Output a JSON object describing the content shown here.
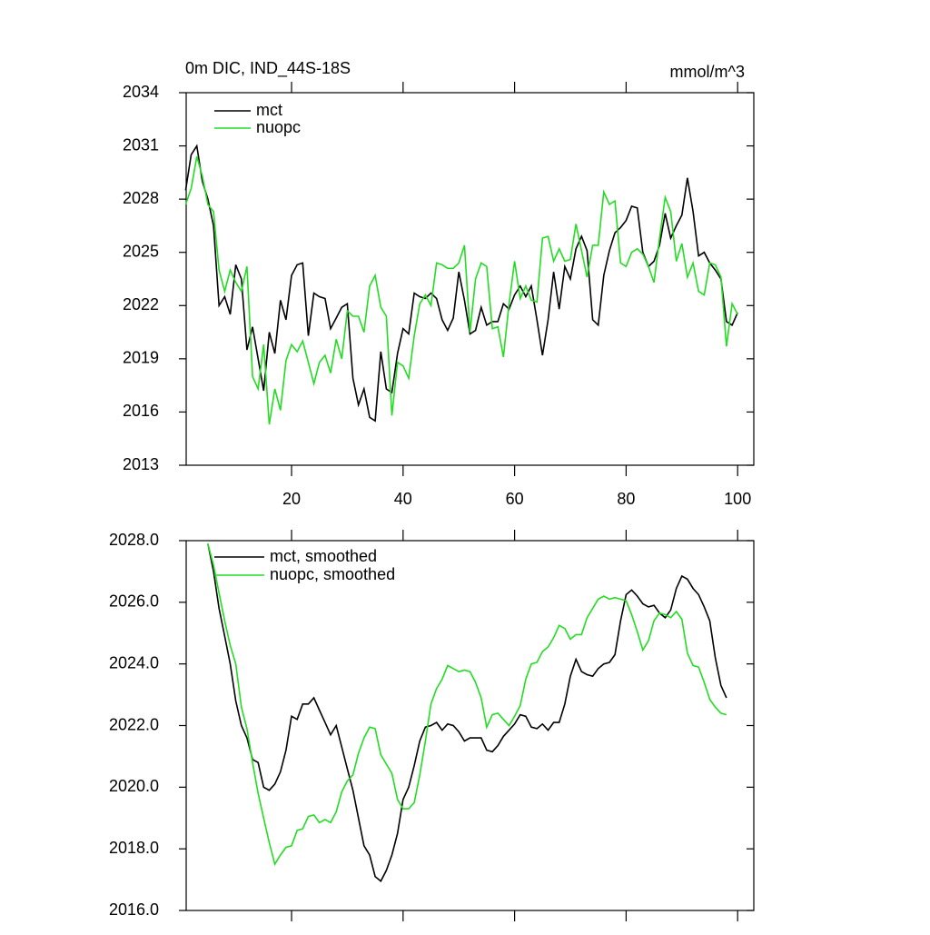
{
  "chart_data": [
    {
      "type": "line",
      "title": "0m DIC, IND_44S-18S",
      "units": "mmol/m^3",
      "xlim": [
        1.1,
        102.9
      ],
      "xticks": [
        20,
        40,
        60,
        80,
        100
      ],
      "ylim": [
        2013,
        2034
      ],
      "yticks": [
        2013,
        2016,
        2019,
        2022,
        2025,
        2028,
        2031,
        2034
      ],
      "x": [
        1,
        2,
        3,
        4,
        5,
        6,
        7,
        8,
        9,
        10,
        11,
        12,
        13,
        14,
        15,
        16,
        17,
        18,
        19,
        20,
        21,
        22,
        23,
        24,
        25,
        26,
        27,
        28,
        29,
        30,
        31,
        32,
        33,
        34,
        35,
        36,
        37,
        38,
        39,
        40,
        41,
        42,
        43,
        44,
        45,
        46,
        47,
        48,
        49,
        50,
        51,
        52,
        53,
        54,
        55,
        56,
        57,
        58,
        59,
        60,
        61,
        62,
        63,
        64,
        65,
        66,
        67,
        68,
        69,
        70,
        71,
        72,
        73,
        74,
        75,
        76,
        77,
        78,
        79,
        80,
        81,
        82,
        83,
        84,
        85,
        86,
        87,
        88,
        89,
        90,
        91,
        92,
        93,
        94,
        95,
        96,
        97,
        98,
        99,
        100
      ],
      "series": [
        {
          "name": "mct",
          "color": "#000000",
          "values": [
            2028.5,
            2030.5,
            2031,
            2029,
            2028,
            2026.5,
            2022,
            2022.5,
            2021.5,
            2024.3,
            2023.5,
            2019.5,
            2020.8,
            2019,
            2017.2,
            2020.5,
            2019.3,
            2022.3,
            2021.2,
            2023.7,
            2024.3,
            2024.4,
            2020.3,
            2022.7,
            2022.5,
            2022.4,
            2020.7,
            2021.3,
            2021.9,
            2022.1,
            2017.9,
            2016.4,
            2017.3,
            2015.7,
            2015.5,
            2019.4,
            2017.3,
            2017.1,
            2019.3,
            2020.7,
            2020.4,
            2022.7,
            2022.5,
            2022.4,
            2022.7,
            2022.4,
            2021.2,
            2020.6,
            2021.3,
            2023.9,
            2022.3,
            2020.4,
            2020.6,
            2021.9,
            2020.9,
            2021.1,
            2021.1,
            2022.1,
            2021.8,
            2022.6,
            2023.1,
            2022.5,
            2023.1,
            2021.2,
            2019.2,
            2021.2,
            2023.9,
            2021.8,
            2024.2,
            2023.5,
            2025.2,
            2025.9,
            2025.1,
            2021.2,
            2020.9,
            2023.7,
            2025.1,
            2026.1,
            2026.4,
            2026.8,
            2027.6,
            2027.5,
            2025.0,
            2024.2,
            2024.5,
            2025.4,
            2027.2,
            2025.8,
            2026.5,
            2027.1,
            2029.2,
            2027.3,
            2024.8,
            2025.0,
            2024.4,
            2024.0,
            2023.5,
            2021.1,
            2020.9,
            2021.6
          ]
        },
        {
          "name": "nuopc",
          "color": "#22dd22",
          "values": [
            2027.7,
            2028.6,
            2030.4,
            2029.3,
            2027.7,
            2027.3,
            2024.0,
            2022.8,
            2024.0,
            2023.3,
            2022.8,
            2024.2,
            2018.0,
            2017.3,
            2019.8,
            2015.3,
            2017.3,
            2016.1,
            2018.9,
            2019.8,
            2019.4,
            2020.0,
            2018.8,
            2017.6,
            2018.8,
            2019.2,
            2018.2,
            2020.1,
            2019.0,
            2021.7,
            2021.4,
            2021.4,
            2020.5,
            2023.1,
            2023.7,
            2021.9,
            2021.4,
            2015.8,
            2018.8,
            2018.6,
            2017.9,
            2020.3,
            2022.1,
            2022.6,
            2022.0,
            2024.4,
            2024.3,
            2024.1,
            2024.1,
            2024.4,
            2025.4,
            2020.5,
            2023.5,
            2024.4,
            2024.2,
            2020.7,
            2020.8,
            2019.1,
            2022.1,
            2024.5,
            2022.4,
            2023.1,
            2022.3,
            2022.2,
            2025.8,
            2025.9,
            2024.5,
            2025.2,
            2024.5,
            2024.6,
            2026.6,
            2025.1,
            2023.6,
            2025.4,
            2025.4,
            2028.4,
            2027.7,
            2027.9,
            2024.4,
            2024.2,
            2025.0,
            2025.2,
            2024.9,
            2024.2,
            2023.3,
            2025.8,
            2028.1,
            2027.3,
            2024.5,
            2025.5,
            2023.6,
            2024.4,
            2022.8,
            2022.6,
            2024.4,
            2024.3,
            2023.6,
            2019.7,
            2022.1,
            2021.5
          ]
        }
      ]
    },
    {
      "type": "line",
      "xlim": [
        1.1,
        102.9
      ],
      "ylim": [
        2016,
        2028
      ],
      "yticks": [
        {
          "value": 2016,
          "label": "2016.0"
        },
        {
          "value": 2018,
          "label": "2018.0"
        },
        {
          "value": 2020,
          "label": "2020.0"
        },
        {
          "value": 2022,
          "label": "2022.0"
        },
        {
          "value": 2024,
          "label": "2024.0"
        },
        {
          "value": 2026,
          "label": "2026.0"
        },
        {
          "value": 2028,
          "label": "2028.0"
        }
      ],
      "x": [
        5,
        6,
        7,
        8,
        9,
        10,
        11,
        12,
        13,
        14,
        15,
        16,
        17,
        18,
        19,
        20,
        21,
        22,
        23,
        24,
        25,
        26,
        27,
        28,
        29,
        30,
        31,
        32,
        33,
        34,
        35,
        36,
        37,
        38,
        39,
        40,
        41,
        42,
        43,
        44,
        45,
        46,
        47,
        48,
        49,
        50,
        51,
        52,
        53,
        54,
        55,
        56,
        57,
        58,
        59,
        60,
        61,
        62,
        63,
        64,
        65,
        66,
        67,
        68,
        69,
        70,
        71,
        72,
        73,
        74,
        75,
        76,
        77,
        78,
        79,
        80,
        81,
        82,
        83,
        84,
        85,
        86,
        87,
        88,
        89,
        90,
        91,
        92,
        93,
        94,
        95,
        96,
        97,
        98
      ],
      "series": [
        {
          "name": "mct, smoothed",
          "color": "#000000",
          "values": [
            2027.9,
            2027.0,
            2025.8,
            2024.9,
            2024.0,
            2022.8,
            2022.0,
            2021.6,
            2020.9,
            2020.8,
            2020.0,
            2019.9,
            2020.1,
            2020.5,
            2021.2,
            2022.3,
            2022.2,
            2022.7,
            2022.7,
            2022.9,
            2022.5,
            2022.1,
            2021.7,
            2022.0,
            2021.3,
            2020.6,
            2019.9,
            2019.0,
            2018.1,
            2017.8,
            2017.1,
            2016.95,
            2017.3,
            2017.8,
            2018.5,
            2019.6,
            2020.0,
            2020.7,
            2021.5,
            2021.95,
            2022.0,
            2022.1,
            2021.85,
            2022.05,
            2022.0,
            2021.8,
            2021.5,
            2021.6,
            2021.6,
            2021.6,
            2021.2,
            2021.15,
            2021.35,
            2021.65,
            2021.85,
            2022.05,
            2022.35,
            2022.3,
            2021.95,
            2021.9,
            2022.05,
            2021.85,
            2022.1,
            2022.1,
            2022.7,
            2023.6,
            2024.15,
            2023.75,
            2023.65,
            2023.6,
            2023.85,
            2024.0,
            2024.05,
            2024.3,
            2025.4,
            2026.25,
            2026.4,
            2026.2,
            2025.95,
            2025.85,
            2025.9,
            2025.65,
            2025.5,
            2025.75,
            2026.45,
            2026.85,
            2026.75,
            2026.45,
            2026.25,
            2025.85,
            2025.4,
            2024.2,
            2023.3,
            2022.9
          ]
        },
        {
          "name": "nuopc, smoothed",
          "color": "#22dd22",
          "values": [
            2027.9,
            2027.2,
            2026.3,
            2025.4,
            2024.6,
            2024.0,
            2022.6,
            2021.9,
            2020.8,
            2019.8,
            2019.0,
            2018.2,
            2017.5,
            2017.8,
            2018.05,
            2018.1,
            2018.6,
            2018.65,
            2019.05,
            2019.1,
            2018.85,
            2018.95,
            2018.85,
            2019.2,
            2019.85,
            2020.2,
            2020.4,
            2021.1,
            2021.6,
            2021.95,
            2021.9,
            2021.05,
            2020.75,
            2020.45,
            2019.6,
            2019.3,
            2019.3,
            2019.5,
            2020.4,
            2021.5,
            2022.7,
            2023.2,
            2023.5,
            2023.95,
            2023.85,
            2023.75,
            2023.8,
            2023.75,
            2023.4,
            2022.9,
            2021.95,
            2022.35,
            2022.4,
            2022.2,
            2022.0,
            2022.3,
            2022.65,
            2023.5,
            2024.0,
            2024.05,
            2024.4,
            2024.55,
            2024.85,
            2025.25,
            2025.15,
            2024.8,
            2024.95,
            2024.95,
            2025.5,
            2025.8,
            2026.1,
            2026.2,
            2026.1,
            2026.15,
            2026.1,
            2026.05,
            2025.6,
            2025.05,
            2024.45,
            2024.75,
            2025.4,
            2025.65,
            2025.6,
            2025.5,
            2025.7,
            2025.45,
            2024.35,
            2023.95,
            2023.9,
            2023.4,
            2022.85,
            2022.6,
            2022.4,
            2022.35
          ]
        }
      ]
    }
  ]
}
